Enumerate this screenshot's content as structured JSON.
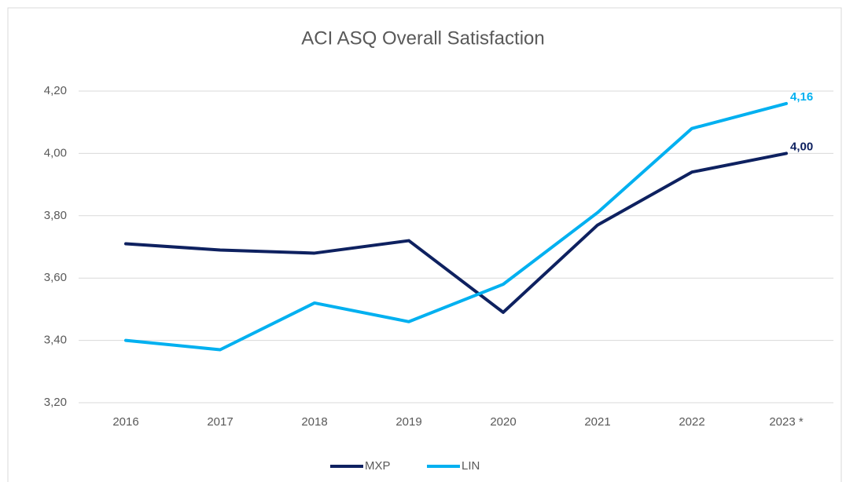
{
  "chart_data": {
    "type": "line",
    "title": "ACI ASQ Overall Satisfaction",
    "categories": [
      "2016",
      "2017",
      "2018",
      "2019",
      "2020",
      "2021",
      "2022",
      "2023 *"
    ],
    "series": [
      {
        "name": "MXP",
        "color": "#0e2160",
        "values": [
          3.71,
          3.69,
          3.68,
          3.72,
          3.49,
          3.77,
          3.94,
          4.0
        ],
        "value_labels": [
          null,
          null,
          null,
          null,
          null,
          null,
          null,
          "4,00"
        ]
      },
      {
        "name": "LIN",
        "color": "#00b0f0",
        "values": [
          3.4,
          3.37,
          3.52,
          3.46,
          3.58,
          3.81,
          4.08,
          4.16
        ],
        "value_labels": [
          null,
          null,
          null,
          null,
          null,
          null,
          null,
          "4,16"
        ]
      }
    ],
    "ylim": [
      3.2,
      4.2
    ],
    "yticks": [
      {
        "value": 3.2,
        "label": "3,20"
      },
      {
        "value": 3.4,
        "label": "3,40"
      },
      {
        "value": 3.6,
        "label": "3,60"
      },
      {
        "value": 3.8,
        "label": "3,80"
      },
      {
        "value": 4.0,
        "label": "4,00"
      },
      {
        "value": 4.2,
        "label": "4,20"
      }
    ],
    "grid": true,
    "legend": "bottom"
  }
}
